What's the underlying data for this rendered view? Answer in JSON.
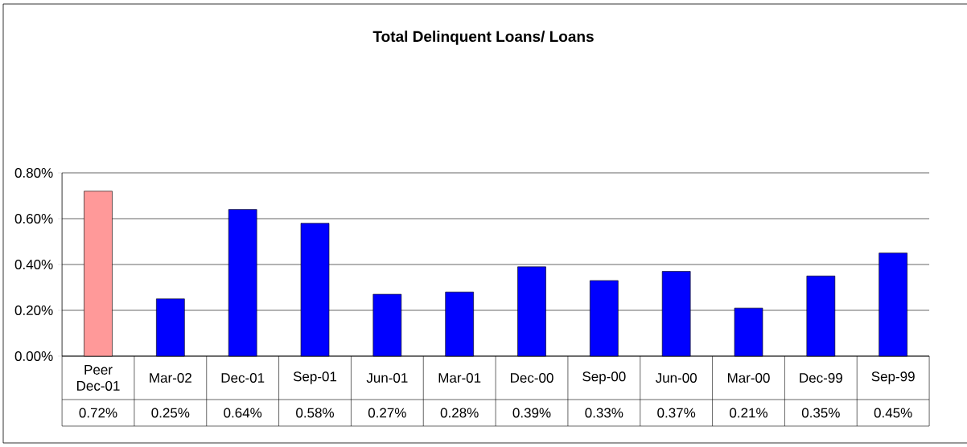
{
  "chart_data": {
    "type": "bar",
    "title": "Total Delinquent Loans/ Loans",
    "categories": [
      "Peer Dec-01",
      "Mar-02",
      "Dec-01",
      "Sep-01",
      "Jun-01",
      "Mar-01",
      "Dec-00",
      "Sep-00",
      "Jun-00",
      "Mar-00",
      "Dec-99",
      "Sep-99"
    ],
    "values": [
      0.72,
      0.25,
      0.64,
      0.58,
      0.27,
      0.28,
      0.39,
      0.33,
      0.37,
      0.21,
      0.35,
      0.45
    ],
    "value_labels": [
      "0.72%",
      "0.25%",
      "0.64%",
      "0.58%",
      "0.27%",
      "0.28%",
      "0.39%",
      "0.33%",
      "0.37%",
      "0.21%",
      "0.35%",
      "0.45%"
    ],
    "colors": [
      "#ff9999",
      "#0000ff",
      "#0000ff",
      "#0000ff",
      "#0000ff",
      "#0000ff",
      "#0000ff",
      "#0000ff",
      "#0000ff",
      "#0000ff",
      "#0000ff",
      "#0000ff"
    ],
    "ylim": [
      0,
      0.8
    ],
    "yticks": [
      {
        "value": 0,
        "label": "0.00%"
      },
      {
        "value": 0.2,
        "label": "0.20%"
      },
      {
        "value": 0.4,
        "label": "0.40%"
      },
      {
        "value": 0.6,
        "label": "0.60%"
      },
      {
        "value": 0.8,
        "label": "0.80%"
      }
    ],
    "grid": "y"
  }
}
